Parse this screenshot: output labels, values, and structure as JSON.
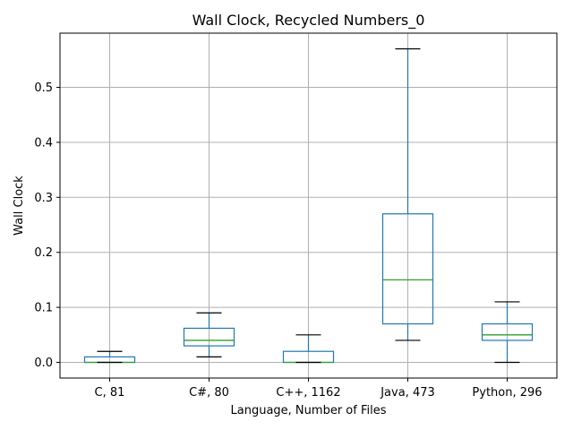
{
  "chart_data": {
    "type": "box",
    "title": "Wall Clock, Recycled Numbers_0",
    "xlabel": "Language, Number of Files",
    "ylabel": "Wall Clock",
    "ylim": [
      -0.0285,
      0.5985
    ],
    "yticks": [
      0.0,
      0.1,
      0.2,
      0.3,
      0.4,
      0.5
    ],
    "ytick_labels": [
      "0.0",
      "0.1",
      "0.2",
      "0.3",
      "0.4",
      "0.5"
    ],
    "grid": true,
    "colors": {
      "box": "#1f77b4",
      "median": "#2ca02c",
      "whisker": "#1f77b4",
      "cap": "#000000",
      "grid": "#b0b0b0"
    },
    "categories": [
      "C, 81",
      "C#, 80",
      "C++, 1162",
      "Java, 473",
      "Python, 296"
    ],
    "boxes": [
      {
        "whislo": 0.0,
        "q1": 0.0,
        "med": 0.0,
        "q3": 0.01,
        "whishi": 0.02
      },
      {
        "whislo": 0.01,
        "q1": 0.03,
        "med": 0.04,
        "q3": 0.062,
        "whishi": 0.09
      },
      {
        "whislo": 0.0,
        "q1": 0.0,
        "med": 0.0,
        "q3": 0.02,
        "whishi": 0.05
      },
      {
        "whislo": 0.04,
        "q1": 0.07,
        "med": 0.15,
        "q3": 0.27,
        "whishi": 0.57
      },
      {
        "whislo": 0.0,
        "q1": 0.04,
        "med": 0.05,
        "q3": 0.07,
        "whishi": 0.11
      }
    ]
  }
}
